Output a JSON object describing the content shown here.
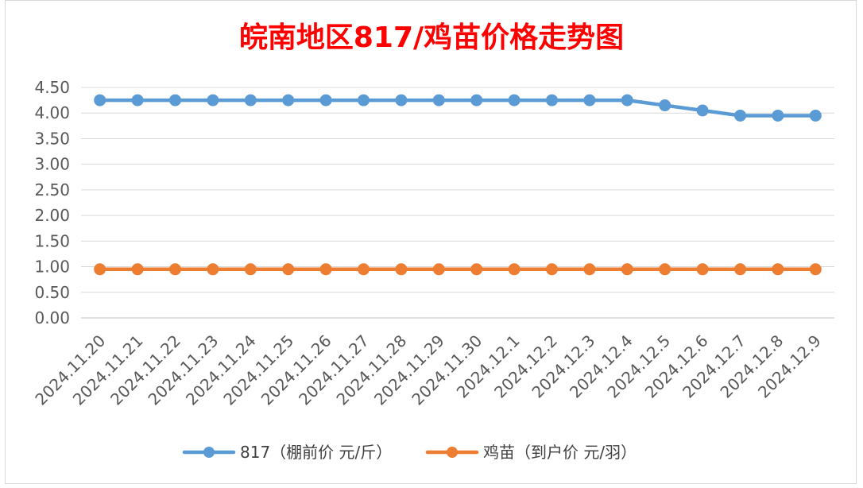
{
  "chart_data": {
    "type": "line",
    "title": "皖南地区817/鸡苗价格走势图",
    "categories": [
      "2024.11.20",
      "2024.11.21",
      "2024.11.22",
      "2024.11.23",
      "2024.11.24",
      "2024.11.25",
      "2024.11.26",
      "2024.11.27",
      "2024.11.28",
      "2024.11.29",
      "2024.11.30",
      "2024.12.1",
      "2024.12.2",
      "2024.12.3",
      "2024.12.4",
      "2024.12.5",
      "2024.12.6",
      "2024.12.7",
      "2024.12.8",
      "2024.12.9"
    ],
    "series": [
      {
        "name": "817（棚前价 元/斤）",
        "color": "#5b9bd5",
        "values": [
          4.25,
          4.25,
          4.25,
          4.25,
          4.25,
          4.25,
          4.25,
          4.25,
          4.25,
          4.25,
          4.25,
          4.25,
          4.25,
          4.25,
          4.25,
          4.15,
          4.05,
          3.95,
          3.95,
          3.95
        ]
      },
      {
        "name": "鸡苗（到户价 元/羽）",
        "color": "#ed7d31",
        "values": [
          0.95,
          0.95,
          0.95,
          0.95,
          0.95,
          0.95,
          0.95,
          0.95,
          0.95,
          0.95,
          0.95,
          0.95,
          0.95,
          0.95,
          0.95,
          0.95,
          0.95,
          0.95,
          0.95,
          0.95
        ]
      }
    ],
    "y_ticks": [
      "0.00",
      "0.50",
      "1.00",
      "1.50",
      "2.00",
      "2.50",
      "3.00",
      "3.50",
      "4.00",
      "4.50"
    ],
    "ylim": [
      0,
      4.5
    ],
    "grid": true,
    "legend_position": "bottom"
  }
}
